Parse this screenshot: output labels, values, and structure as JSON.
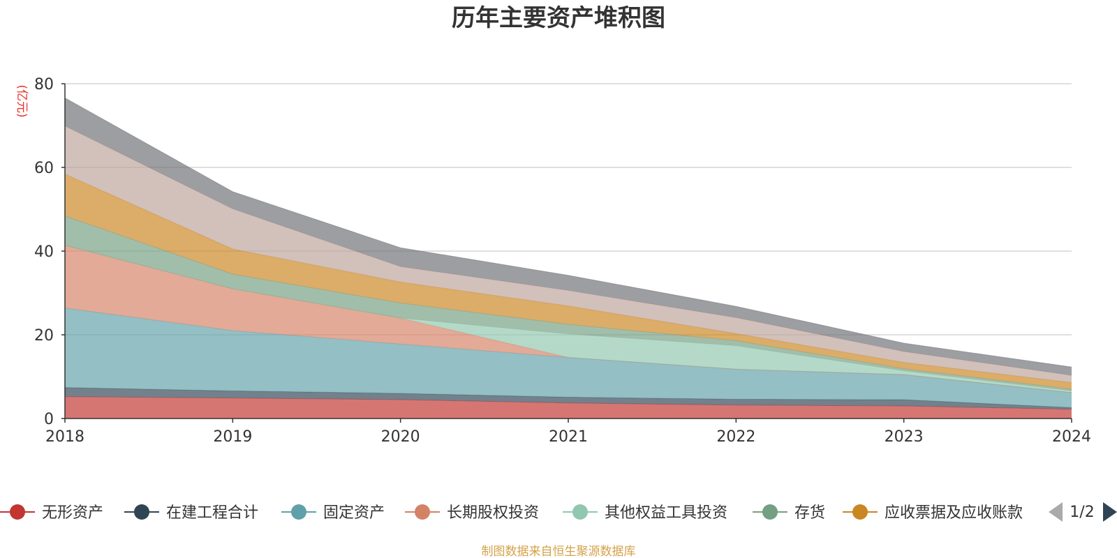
{
  "chart_data": {
    "type": "area",
    "stacked": true,
    "title": "历年主要资产堆积图",
    "unit_label": "(亿元)",
    "x": [
      "2018",
      "2019",
      "2020",
      "2021",
      "2022",
      "2023",
      "2024"
    ],
    "ylim": [
      0,
      80
    ],
    "yticks": [
      "0",
      "20",
      "40",
      "60",
      "80"
    ],
    "grid": true,
    "series": [
      {
        "name": "无形资产",
        "color": "#c23531",
        "values": [
          5.2,
          4.9,
          4.5,
          3.7,
          3.2,
          3.0,
          2.2
        ]
      },
      {
        "name": "在建工程合计",
        "color": "#2f4554",
        "values": [
          2.2,
          1.7,
          1.5,
          1.4,
          1.4,
          1.5,
          0.4
        ]
      },
      {
        "name": "固定资产",
        "color": "#61a0a8",
        "values": [
          19.0,
          14.4,
          11.8,
          9.5,
          7.2,
          6.0,
          3.6
        ]
      },
      {
        "name": "长期股权投资",
        "color": "#d48265",
        "values": [
          15.0,
          10.0,
          6.2,
          0.0,
          0.0,
          0.0,
          0.0
        ]
      },
      {
        "name": "其他权益工具投资",
        "color": "#91c7ae",
        "values": [
          0.0,
          0.0,
          0.0,
          5.6,
          5.6,
          0.9,
          0.4
        ]
      },
      {
        "name": "存货",
        "color": "#749f83",
        "values": [
          7.0,
          3.5,
          3.6,
          2.3,
          1.2,
          0.5,
          0.4
        ]
      },
      {
        "name": "应收票据及应收账款",
        "color": "#ca8622",
        "values": [
          10.0,
          6.0,
          5.0,
          4.4,
          1.7,
          1.5,
          1.6
        ]
      },
      {
        "color": "#bda29a",
        "values": [
          11.5,
          9.6,
          3.7,
          3.7,
          3.8,
          2.6,
          1.7
        ]
      },
      {
        "color": "#6e7074",
        "values": [
          6.7,
          4.1,
          4.5,
          3.6,
          2.7,
          2.0,
          2.0
        ]
      }
    ]
  },
  "legend": {
    "items": [
      "无形资产",
      "在建工程合计",
      "固定资产",
      "长期股权投资",
      "其他权益工具投资",
      "存货",
      "应收票据及应收账款"
    ],
    "colors": [
      "#c23531",
      "#2f4554",
      "#61a0a8",
      "#d48265",
      "#91c7ae",
      "#749f83",
      "#ca8622"
    ],
    "page": "1/2",
    "prev_icon": "triangle-left-icon",
    "next_icon": "triangle-right-icon"
  },
  "source": "制图数据来自恒生聚源数据库"
}
